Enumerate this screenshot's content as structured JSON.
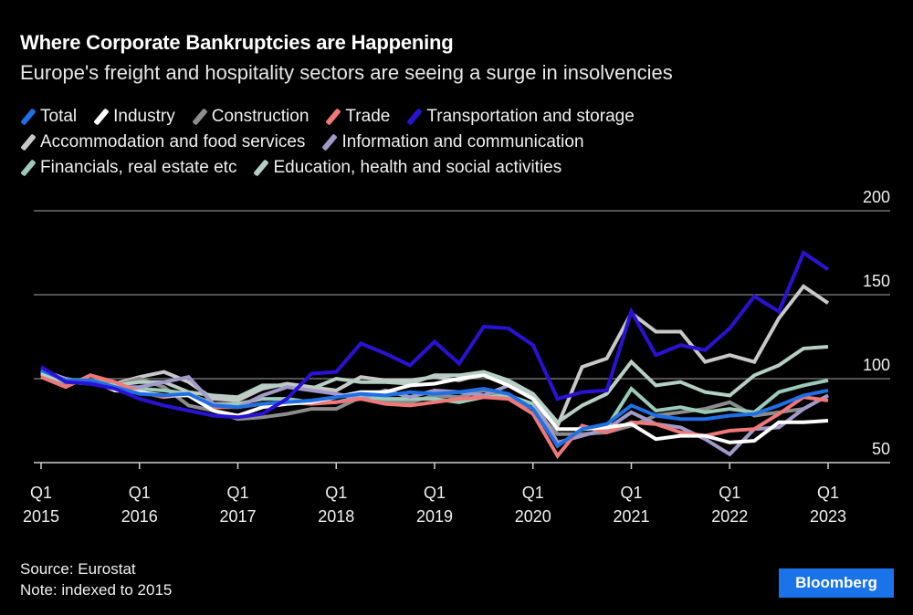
{
  "header": {
    "title": "Where Corporate Bankruptcies are Happening",
    "subtitle": "Europe's freight and hospitality sectors are seeing a surge in insolvencies"
  },
  "footer": {
    "source": "Source: Eurostat",
    "note": "Note: indexed to 2015",
    "brand": "Bloomberg"
  },
  "chart_data": {
    "type": "line",
    "title": "Where Corporate Bankruptcies are Happening",
    "subtitle": "Europe's freight and hospitality sectors are seeing a surge in insolvencies",
    "xlabel": "",
    "ylabel": "",
    "ylim": [
      50,
      200
    ],
    "yticks": [
      50,
      100,
      150,
      200
    ],
    "grid": true,
    "legend_position": "top",
    "x_tick_labels": [
      {
        "q": "Q1",
        "year": "2015",
        "index": 0
      },
      {
        "q": "Q1",
        "year": "2016",
        "index": 4
      },
      {
        "q": "Q1",
        "year": "2017",
        "index": 8
      },
      {
        "q": "Q1",
        "year": "2018",
        "index": 12
      },
      {
        "q": "Q1",
        "year": "2019",
        "index": 16
      },
      {
        "q": "Q1",
        "year": "2020",
        "index": 20
      },
      {
        "q": "Q1",
        "year": "2021",
        "index": 24
      },
      {
        "q": "Q1",
        "year": "2022",
        "index": 28
      },
      {
        "q": "Q1",
        "year": "2023",
        "index": 32
      }
    ],
    "x": [
      "2015Q1",
      "2015Q2",
      "2015Q3",
      "2015Q4",
      "2016Q1",
      "2016Q2",
      "2016Q3",
      "2016Q4",
      "2017Q1",
      "2017Q2",
      "2017Q3",
      "2017Q4",
      "2018Q1",
      "2018Q2",
      "2018Q3",
      "2018Q4",
      "2019Q1",
      "2019Q2",
      "2019Q3",
      "2019Q4",
      "2020Q1",
      "2020Q2",
      "2020Q3",
      "2020Q4",
      "2021Q1",
      "2021Q2",
      "2021Q3",
      "2021Q4",
      "2022Q1",
      "2022Q2",
      "2022Q3",
      "2022Q4",
      "2023Q1"
    ],
    "series": [
      {
        "name": "Accommodation and food services",
        "color": "#c8c8c8",
        "values": [
          103,
          97,
          99,
          97,
          101,
          104,
          98,
          88,
          87,
          94,
          97,
          95,
          93,
          101,
          99,
          99,
          101,
          99,
          103,
          97,
          90,
          72,
          107,
          112,
          139,
          128,
          128,
          110,
          114,
          110,
          136,
          155,
          145
        ]
      },
      {
        "name": "Construction",
        "color": "#8c8c8c",
        "values": [
          102,
          97,
          99,
          96,
          100,
          95,
          84,
          81,
          76,
          77,
          79,
          82,
          82,
          89,
          87,
          86,
          90,
          89,
          93,
          89,
          82,
          67,
          67,
          68,
          72,
          78,
          80,
          82,
          86,
          78,
          80,
          82,
          90
        ]
      },
      {
        "name": "Financials, real estate etc",
        "color": "#9ccab8",
        "values": [
          104,
          98,
          98,
          95,
          94,
          93,
          91,
          85,
          85,
          88,
          88,
          86,
          86,
          89,
          88,
          88,
          88,
          86,
          89,
          90,
          85,
          60,
          70,
          71,
          94,
          81,
          83,
          80,
          82,
          80,
          92,
          96,
          99
        ]
      },
      {
        "name": "Education, health and social activities",
        "color": "#b6cfc4",
        "values": [
          103,
          98,
          97,
          96,
          98,
          98,
          92,
          90,
          89,
          96,
          96,
          94,
          100,
          98,
          98,
          97,
          102,
          102,
          104,
          99,
          91,
          74,
          84,
          91,
          110,
          96,
          98,
          92,
          90,
          102,
          108,
          118,
          119
        ]
      },
      {
        "name": "Information and communication",
        "color": "#a19ac9",
        "values": [
          105,
          100,
          97,
          95,
          95,
          98,
          101,
          85,
          83,
          90,
          95,
          93,
          91,
          88,
          93,
          89,
          93,
          92,
          90,
          96,
          88,
          62,
          66,
          70,
          80,
          73,
          71,
          64,
          55,
          70,
          71,
          82,
          90
        ]
      },
      {
        "name": "Trade",
        "color": "#f07878",
        "values": [
          101,
          95,
          102,
          98,
          92,
          89,
          91,
          83,
          83,
          85,
          86,
          85,
          86,
          88,
          85,
          84,
          86,
          88,
          89,
          88,
          79,
          54,
          72,
          68,
          74,
          73,
          68,
          66,
          69,
          70,
          79,
          89,
          87
        ]
      },
      {
        "name": "Industry",
        "color": "#ffffff",
        "values": [
          105,
          99,
          99,
          93,
          92,
          90,
          90,
          81,
          78,
          83,
          85,
          86,
          89,
          92,
          92,
          96,
          97,
          100,
          102,
          96,
          88,
          70,
          70,
          71,
          73,
          64,
          66,
          66,
          62,
          63,
          74,
          74,
          75
        ]
      },
      {
        "name": "Total",
        "color": "#1f6fe5",
        "values": [
          105,
          99,
          99,
          95,
          91,
          90,
          91,
          84,
          83,
          85,
          86,
          87,
          89,
          91,
          90,
          92,
          91,
          92,
          94,
          91,
          82,
          60,
          70,
          73,
          84,
          78,
          76,
          76,
          78,
          79,
          84,
          90,
          93
        ]
      },
      {
        "name": "Transportation and storage",
        "color": "#2a12d4",
        "values": [
          107,
          98,
          97,
          94,
          88,
          84,
          81,
          78,
          77,
          79,
          88,
          103,
          104,
          121,
          115,
          108,
          122,
          109,
          131,
          130,
          120,
          88,
          92,
          93,
          140,
          114,
          120,
          117,
          130,
          149,
          140,
          175,
          165
        ]
      }
    ],
    "legend": [
      {
        "name": "Total",
        "color": "#1f6fe5",
        "row": 0
      },
      {
        "name": "Industry",
        "color": "#ffffff",
        "row": 0
      },
      {
        "name": "Construction",
        "color": "#8c8c8c",
        "row": 0
      },
      {
        "name": "Trade",
        "color": "#f07878",
        "row": 0
      },
      {
        "name": "Transportation and storage",
        "color": "#2a12d4",
        "row": 0
      },
      {
        "name": "Accommodation and food services",
        "color": "#c8c8c8",
        "row": 1
      },
      {
        "name": "Information and communication",
        "color": "#a19ac9",
        "row": 1
      },
      {
        "name": "Financials, real estate etc",
        "color": "#9ccab8",
        "row": 2
      },
      {
        "name": "Education, health and social activities",
        "color": "#b6cfc4",
        "row": 2
      }
    ]
  }
}
